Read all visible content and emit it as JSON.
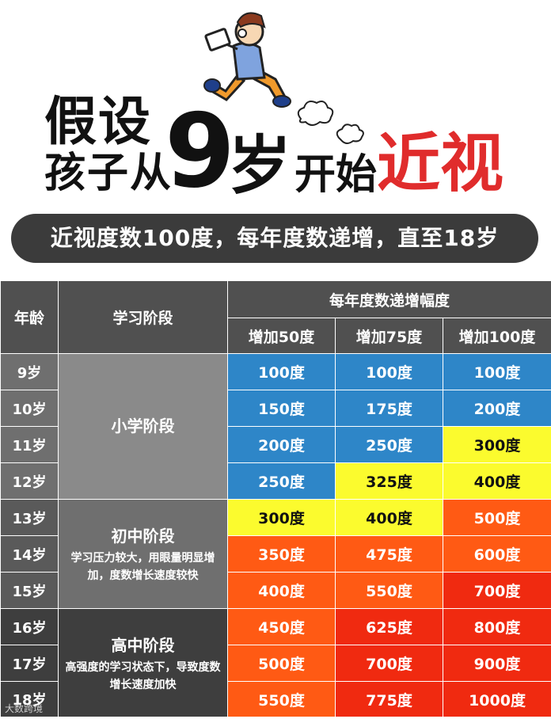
{
  "header": {
    "line1": "假设",
    "line2": "孩子从",
    "nine": "9",
    "sui": "岁",
    "kaishi": "开始",
    "jinshi": "近视",
    "accent_color": "#e02c2c"
  },
  "banner": "近视度数100度，每年度数递增，直至18岁",
  "table": {
    "head_age": "年龄",
    "head_stage": "学习阶段",
    "head_group": "每年度数递增幅度",
    "head_cols": [
      "增加50度",
      "增加75度",
      "增加100度"
    ],
    "rows": [
      {
        "age": "9岁",
        "cells": [
          "100度",
          "100度",
          "100度"
        ]
      },
      {
        "age": "10岁",
        "cells": [
          "150度",
          "175度",
          "200度"
        ]
      },
      {
        "age": "11岁",
        "cells": [
          "200度",
          "250度",
          "300度"
        ]
      },
      {
        "age": "12岁",
        "cells": [
          "250度",
          "325度",
          "400度"
        ]
      },
      {
        "age": "13岁",
        "cells": [
          "300度",
          "400度",
          "500度"
        ]
      },
      {
        "age": "14岁",
        "cells": [
          "350度",
          "475度",
          "600度"
        ]
      },
      {
        "age": "15岁",
        "cells": [
          "400度",
          "550度",
          "700度"
        ]
      },
      {
        "age": "16岁",
        "cells": [
          "450度",
          "625度",
          "800度"
        ]
      },
      {
        "age": "17岁",
        "cells": [
          "500度",
          "700度",
          "900度"
        ]
      },
      {
        "age": "18岁",
        "cells": [
          "550度",
          "775度",
          "1000度"
        ]
      }
    ],
    "stages": [
      {
        "title": "小学阶段",
        "desc": ""
      },
      {
        "title": "初中阶段",
        "desc": "学习压力较大，用眼量明显增加，度数增长速度较快"
      },
      {
        "title": "高中阶段",
        "desc": "高强度的学习状态下，导致度数增长速度加快"
      }
    ],
    "colors": {
      "blue": "#2e86c8",
      "yellow": "#fbfb2e",
      "orange": "#ff5a14",
      "red": "#f02a10"
    }
  },
  "watermark": "大数跨境"
}
